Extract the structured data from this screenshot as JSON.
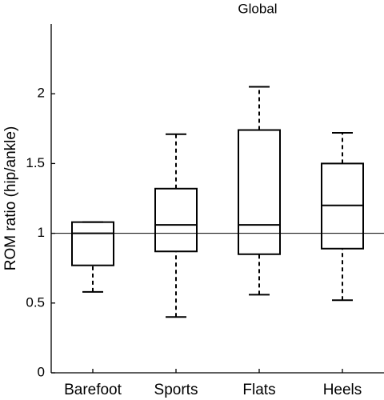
{
  "chart_data": {
    "type": "box",
    "title": "Global",
    "y_label": "ROM ratio (hip/ankle)",
    "categories": [
      "Barefoot",
      "Sports",
      "Flats",
      "Heels"
    ],
    "boxes": [
      {
        "min": 0.58,
        "q1": 0.77,
        "median": 1.0,
        "q3": 1.08,
        "max": 1.08
      },
      {
        "min": 0.4,
        "q1": 0.87,
        "median": 1.06,
        "q3": 1.32,
        "max": 1.71
      },
      {
        "min": 0.56,
        "q1": 0.85,
        "median": 1.06,
        "q3": 1.74,
        "max": 2.05
      },
      {
        "min": 0.52,
        "q1": 0.89,
        "median": 1.2,
        "q3": 1.5,
        "max": 1.72
      }
    ],
    "reference_line": 1,
    "color": "#000000",
    "ylim": [
      0,
      2.5
    ],
    "yticks": [
      0,
      0.5,
      1,
      1.5,
      2
    ]
  }
}
